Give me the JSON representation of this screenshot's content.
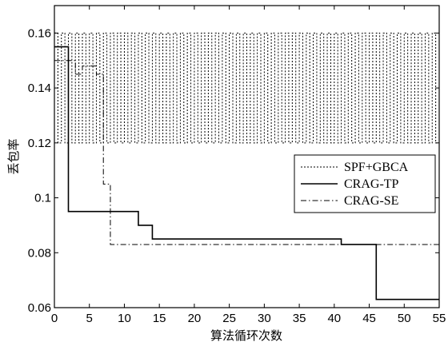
{
  "chart_data": {
    "type": "line",
    "xlabel": "算法循环次数",
    "ylabel": "丢包率",
    "xlim": [
      0,
      55
    ],
    "ylim": [
      0.06,
      0.17
    ],
    "x_ticks": [
      0,
      5,
      10,
      15,
      20,
      25,
      30,
      35,
      40,
      45,
      50,
      55
    ],
    "y_ticks": [
      0.06,
      0.08,
      0.1,
      0.12,
      0.14,
      0.16
    ],
    "y_tick_labels": [
      "0.06",
      "0.08",
      "0.1",
      "0.12",
      "0.14",
      "0.16"
    ],
    "grid": false,
    "legend_position": "right",
    "series": [
      {
        "name": "SPF+GBCA",
        "style": "dotted",
        "color": "#000000",
        "oscillation": {
          "x_start": 0,
          "x_end": 55,
          "low": 0.12,
          "high": 0.16,
          "period": 1
        }
      },
      {
        "name": "CRAG-TP",
        "style": "solid",
        "color": "#000000",
        "step_points": [
          [
            0,
            0.155
          ],
          [
            2,
            0.155
          ],
          [
            2,
            0.095
          ],
          [
            12,
            0.095
          ],
          [
            12,
            0.09
          ],
          [
            14,
            0.09
          ],
          [
            14,
            0.085
          ],
          [
            41,
            0.085
          ],
          [
            41,
            0.083
          ],
          [
            46,
            0.083
          ],
          [
            46,
            0.063
          ],
          [
            55,
            0.063
          ]
        ]
      },
      {
        "name": "CRAG-SE",
        "style": "dashdot",
        "color": "#000000",
        "step_points": [
          [
            0,
            0.15
          ],
          [
            3,
            0.15
          ],
          [
            3,
            0.145
          ],
          [
            4,
            0.145
          ],
          [
            4,
            0.148
          ],
          [
            6,
            0.148
          ],
          [
            6,
            0.145
          ],
          [
            7,
            0.145
          ],
          [
            7,
            0.105
          ],
          [
            8,
            0.105
          ],
          [
            8,
            0.083
          ],
          [
            55,
            0.083
          ]
        ]
      }
    ]
  }
}
